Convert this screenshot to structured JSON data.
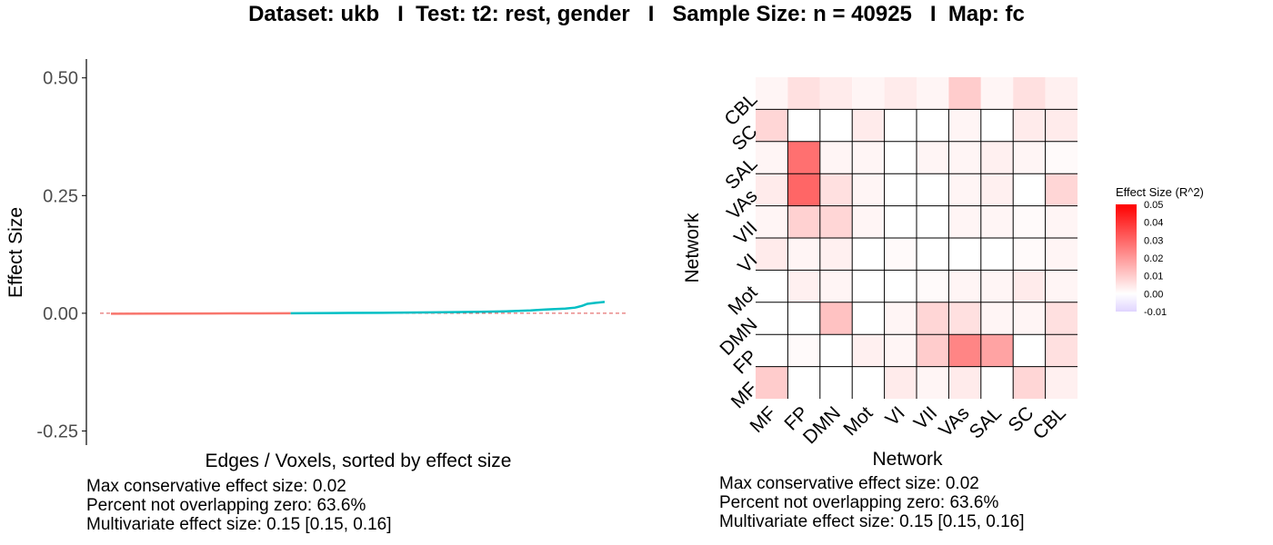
{
  "title": "Dataset: ukb   I  Test: t2: rest, gender   I   Sample Size: n = 40925   I  Map: fc",
  "chart_data": [
    {
      "type": "line",
      "xlabel": "Edges / Voxels, sorted by effect size",
      "ylabel": "Effect Size",
      "yticks": [
        "0.50",
        "0.25",
        "0.00",
        "-0.25"
      ],
      "ytick_values": [
        0.5,
        0.25,
        0,
        -0.25
      ],
      "ylim": [
        -0.28,
        0.54
      ],
      "xlim": [
        0,
        1
      ],
      "reference_line": 0,
      "series": [
        {
          "color": "#f8766d",
          "points": [
            [
              0.0,
              -0.001
            ],
            [
              0.1,
              -0.0008
            ],
            [
              0.2,
              -0.0005
            ],
            [
              0.3,
              -0.0002
            ],
            [
              0.364,
              0.0
            ]
          ]
        },
        {
          "color": "#00bfc4",
          "points": [
            [
              0.364,
              0.0
            ],
            [
              0.45,
              0.0005
            ],
            [
              0.55,
              0.001
            ],
            [
              0.65,
              0.0018
            ],
            [
              0.75,
              0.003
            ],
            [
              0.8,
              0.004
            ],
            [
              0.85,
              0.006
            ],
            [
              0.88,
              0.008
            ],
            [
              0.9,
              0.009
            ],
            [
              0.92,
              0.01
            ],
            [
              0.94,
              0.012
            ],
            [
              0.955,
              0.016
            ],
            [
              0.965,
              0.02
            ],
            [
              0.98,
              0.022
            ],
            [
              1.0,
              0.024
            ]
          ]
        }
      ],
      "stats": [
        "Max conservative effect size: 0.02",
        "Percent not overlapping zero: 63.6%",
        "Multivariate effect size: 0.15 [0.15, 0.16]"
      ]
    },
    {
      "type": "heatmap",
      "xlabel": "Network",
      "ylabel": "Network",
      "x_categories": [
        "MF",
        "FP",
        "DMN",
        "Mot",
        "VI",
        "VII",
        "VAs",
        "SAL",
        "SC",
        "CBL"
      ],
      "y_categories": [
        "MF",
        "FP",
        "DMN",
        "Mot",
        "VI",
        "VII",
        "VAs",
        "SAL",
        "SC",
        "CBL"
      ],
      "matrix_rows_top_to_bottom": [
        [
          0.002,
          0.006,
          0.004,
          0.002,
          0.004,
          0.002,
          0.01,
          0.002,
          0.006,
          0.003
        ],
        [
          0.008,
          0.0,
          0.0,
          0.004,
          0.0,
          0.0,
          0.002,
          0.0,
          0.004,
          0.004
        ],
        [
          0.002,
          0.028,
          0.002,
          0.002,
          0.0,
          0.002,
          0.002,
          0.003,
          0.002,
          0.001
        ],
        [
          0.004,
          0.03,
          0.006,
          0.002,
          0.0,
          0.0,
          0.002,
          0.003,
          0.0,
          0.008
        ],
        [
          0.002,
          0.009,
          0.008,
          0.002,
          0.0,
          0.0,
          0.002,
          0.002,
          0.001,
          0.002
        ],
        [
          0.004,
          0.002,
          0.003,
          0.0,
          0.001,
          0.0,
          0.0,
          0.0,
          0.001,
          0.002
        ],
        [
          0.0,
          0.003,
          0.002,
          0.0,
          0.0,
          0.001,
          0.002,
          0.002,
          0.004,
          0.002
        ],
        [
          0.0,
          0.0,
          0.012,
          0.0,
          0.002,
          0.008,
          0.006,
          0.002,
          0.002,
          0.006
        ],
        [
          0.0,
          0.001,
          0.0,
          0.003,
          0.002,
          0.01,
          0.024,
          0.018,
          0.0,
          0.006
        ],
        [
          0.01,
          0.0,
          0.0,
          0.0,
          0.004,
          0.002,
          0.004,
          0.0,
          0.008,
          0.003
        ]
      ],
      "legend": {
        "title": "Effect Size (R^2)",
        "ticks": [
          "0.05",
          "0.04",
          "0.03",
          "0.02",
          "0.01",
          "0.00",
          "-0.01"
        ],
        "tick_values": [
          0.05,
          0.04,
          0.03,
          0.02,
          0.01,
          0.0,
          -0.01
        ],
        "range": [
          -0.01,
          0.05
        ],
        "colors": {
          "high": "#ff0000",
          "mid": "#ffffff",
          "low": "#e0d4ff"
        },
        "placement": "right"
      },
      "stats": [
        "Max conservative effect size: 0.02",
        "Percent not overlapping zero: 63.6%",
        "Multivariate effect size: 0.15 [0.15, 0.16]"
      ]
    }
  ]
}
